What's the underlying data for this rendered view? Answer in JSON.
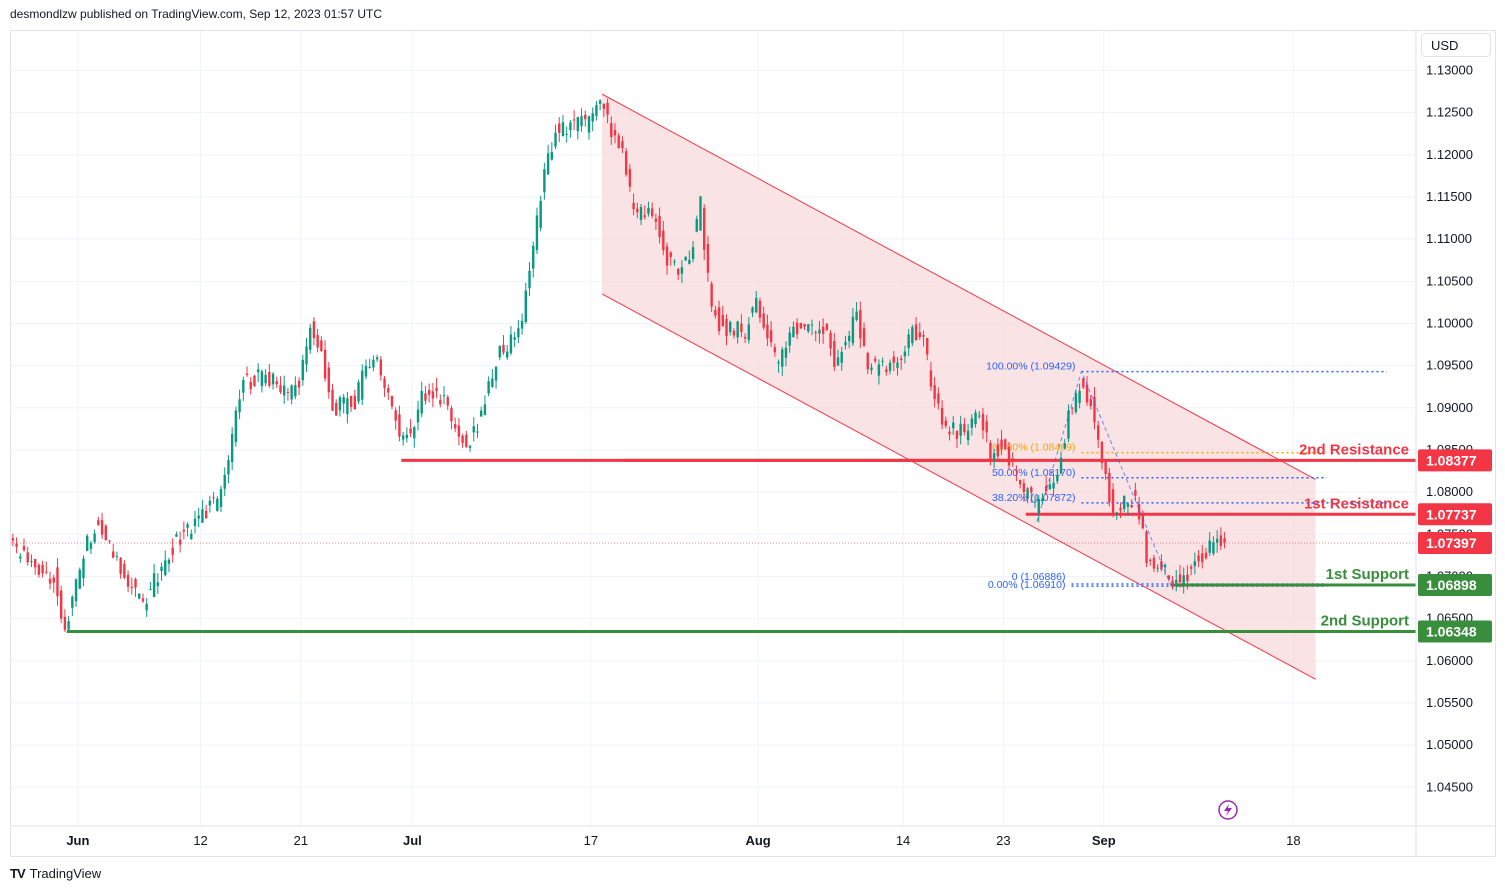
{
  "header": {
    "published_text": "desmondlzw published on TradingView.com, Sep 12, 2023 01:57 UTC"
  },
  "footer": {
    "logo_text": "TradingView",
    "logo_icon": "tradingview-logo-icon"
  },
  "currency": "USD",
  "colors": {
    "up": "#089981",
    "down": "#f23645",
    "resistance": "#f23645",
    "support": "#388e3c",
    "channel_fill": "#f8d7da",
    "channel_line": "#f23645",
    "fib_blue": "#2962ff",
    "fib_orange": "#f7a600",
    "grid": "#f0f3fa"
  },
  "chart_data": {
    "type": "candlestick",
    "pair_axis_currency": "USD",
    "ylim": [
      1.041,
      1.1335
    ],
    "y_ticks": [
      1.13,
      1.125,
      1.12,
      1.115,
      1.11,
      1.105,
      1.1,
      1.095,
      1.09,
      1.085,
      1.08,
      1.075,
      1.07,
      1.065,
      1.06,
      1.055,
      1.05,
      1.045
    ],
    "x_labels": [
      {
        "label": "Jun",
        "date": "2023-06-01",
        "bold": true
      },
      {
        "label": "12",
        "date": "2023-06-12",
        "bold": false
      },
      {
        "label": "21",
        "date": "2023-06-21",
        "bold": false
      },
      {
        "label": "Jul",
        "date": "2023-07-01",
        "bold": true
      },
      {
        "label": "17",
        "date": "2023-07-17",
        "bold": false
      },
      {
        "label": "Aug",
        "date": "2023-08-01",
        "bold": true
      },
      {
        "label": "14",
        "date": "2023-08-14",
        "bold": false
      },
      {
        "label": "23",
        "date": "2023-08-23",
        "bold": false
      },
      {
        "label": "Sep",
        "date": "2023-09-01",
        "bold": true
      },
      {
        "label": "18",
        "date": "2023-09-18",
        "bold": false
      }
    ],
    "x_range": [
      "2023-05-26",
      "2023-09-29"
    ],
    "price_path": [
      [
        "2023-05-26",
        1.0735
      ],
      [
        "2023-05-28",
        1.0715
      ],
      [
        "2023-05-30",
        1.07
      ],
      [
        "2023-05-31",
        1.0635
      ],
      [
        "2023-06-01",
        1.069
      ],
      [
        "2023-06-02",
        1.074
      ],
      [
        "2023-06-03",
        1.077
      ],
      [
        "2023-06-05",
        1.071
      ],
      [
        "2023-06-06",
        1.069
      ],
      [
        "2023-06-07",
        1.0665
      ],
      [
        "2023-06-08",
        1.0695
      ],
      [
        "2023-06-09",
        1.072
      ],
      [
        "2023-06-10",
        1.0745
      ],
      [
        "2023-06-12",
        1.0765
      ],
      [
        "2023-06-13",
        1.0785
      ],
      [
        "2023-06-14",
        1.0795
      ],
      [
        "2023-06-15",
        1.087
      ],
      [
        "2023-06-16",
        1.093
      ],
      [
        "2023-06-18",
        1.094
      ],
      [
        "2023-06-19",
        1.0925
      ],
      [
        "2023-06-20",
        1.0915
      ],
      [
        "2023-06-21",
        1.093
      ],
      [
        "2023-06-22",
        1.0995
      ],
      [
        "2023-06-23",
        1.0965
      ],
      [
        "2023-06-24",
        1.09
      ],
      [
        "2023-06-26",
        1.0905
      ],
      [
        "2023-06-27",
        1.095
      ],
      [
        "2023-06-28",
        1.096
      ],
      [
        "2023-06-29",
        1.091
      ],
      [
        "2023-06-30",
        1.087
      ],
      [
        "2023-07-01",
        1.0865
      ],
      [
        "2023-07-02",
        1.091
      ],
      [
        "2023-07-03",
        1.0915
      ],
      [
        "2023-07-04",
        1.0905
      ],
      [
        "2023-07-05",
        1.0875
      ],
      [
        "2023-07-06",
        1.0855
      ],
      [
        "2023-07-07",
        1.088
      ],
      [
        "2023-07-09",
        1.0965
      ],
      [
        "2023-07-10",
        1.098
      ],
      [
        "2023-07-11",
        1.101
      ],
      [
        "2023-07-12",
        1.109
      ],
      [
        "2023-07-13",
        1.118
      ],
      [
        "2023-07-14",
        1.123
      ],
      [
        "2023-07-16",
        1.124
      ],
      [
        "2023-07-17",
        1.1235
      ],
      [
        "2023-07-18",
        1.1265
      ],
      [
        "2023-07-19",
        1.1225
      ],
      [
        "2023-07-20",
        1.12
      ],
      [
        "2023-07-21",
        1.113
      ],
      [
        "2023-07-23",
        1.1125
      ],
      [
        "2023-07-24",
        1.1075
      ],
      [
        "2023-07-25",
        1.106
      ],
      [
        "2023-07-26",
        1.108
      ],
      [
        "2023-07-27",
        1.114
      ],
      [
        "2023-07-28",
        1.1015
      ],
      [
        "2023-07-29",
        1.0995
      ],
      [
        "2023-07-31",
        1.099
      ],
      [
        "2023-08-01",
        1.103
      ],
      [
        "2023-08-02",
        1.0985
      ],
      [
        "2023-08-03",
        1.0945
      ],
      [
        "2023-08-04",
        1.099
      ],
      [
        "2023-08-06",
        1.1
      ],
      [
        "2023-08-07",
        1.0995
      ],
      [
        "2023-08-08",
        1.0955
      ],
      [
        "2023-08-09",
        1.0975
      ],
      [
        "2023-08-10",
        1.101
      ],
      [
        "2023-08-11",
        1.095
      ],
      [
        "2023-08-12",
        1.0945
      ],
      [
        "2023-08-14",
        1.096
      ],
      [
        "2023-08-15",
        1.099
      ],
      [
        "2023-08-16",
        1.0975
      ],
      [
        "2023-08-17",
        1.091
      ],
      [
        "2023-08-18",
        1.0875
      ],
      [
        "2023-08-20",
        1.087
      ],
      [
        "2023-08-21",
        1.0895
      ],
      [
        "2023-08-22",
        1.0845
      ],
      [
        "2023-08-23",
        1.0855
      ],
      [
        "2023-08-24",
        1.0835
      ],
      [
        "2023-08-25",
        1.08
      ],
      [
        "2023-08-26",
        1.0785
      ],
      [
        "2023-08-28",
        1.082
      ],
      [
        "2023-08-29",
        1.089
      ],
      [
        "2023-08-30",
        1.093
      ],
      [
        "2023-08-31",
        1.091
      ],
      [
        "2023-09-01",
        1.084
      ],
      [
        "2023-09-02",
        1.0775
      ],
      [
        "2023-09-04",
        1.0795
      ],
      [
        "2023-09-05",
        1.0725
      ],
      [
        "2023-09-06",
        1.0715
      ],
      [
        "2023-09-07",
        1.07
      ],
      [
        "2023-09-08",
        1.0695
      ],
      [
        "2023-09-09",
        1.071
      ],
      [
        "2023-09-11",
        1.074
      ],
      [
        "2023-09-12",
        1.0745
      ]
    ],
    "channel": {
      "upper_start": [
        "2023-07-18",
        1.1272
      ],
      "upper_end": [
        "2023-09-20",
        1.0815
      ],
      "lower_start": [
        "2023-07-18",
        1.1035
      ],
      "lower_end": [
        "2023-09-20",
        1.0578
      ]
    },
    "levels": [
      {
        "name": "2nd Resistance",
        "value": 1.08377,
        "label": "1.08377",
        "kind": "resistance",
        "start": "2023-07-20"
      },
      {
        "name": "1st Resistance",
        "value": 1.07737,
        "label": "1.07737",
        "kind": "resistance",
        "start": "2023-08-25"
      },
      {
        "name": "current",
        "value": 1.07397,
        "label": "1.07397",
        "kind": "current"
      },
      {
        "name": "1st Support",
        "value": 1.06898,
        "label": "1.06898",
        "kind": "support",
        "start": "2023-09-07"
      },
      {
        "name": "2nd Support",
        "value": 1.06348,
        "label": "1.06348",
        "kind": "support",
        "start": "2023-05-31"
      }
    ],
    "old_resistance_start": "2023-06-30",
    "fib_levels": [
      {
        "label": "100.00% (1.09429)",
        "value": 1.09429,
        "color_key": "fib_blue"
      },
      {
        "label": "61.80% (1.08469)",
        "value": 1.08469,
        "color_key": "fib_orange"
      },
      {
        "label": "50.00% (1.08170)",
        "value": 1.0817,
        "color_key": "fib_blue"
      },
      {
        "label": "38.20% (1.07872)",
        "value": 1.07872,
        "color_key": "fib_blue"
      },
      {
        "label": "0.00% (1.06910)",
        "value": 1.0691,
        "color_key": "fib_blue"
      },
      {
        "label": "0 (1.06886)",
        "value": 1.06886,
        "color_key": "fib_blue"
      }
    ],
    "fib_start": "2023-08-30",
    "fib_extend_end": "2023-09-21",
    "grid": true,
    "legend": "none"
  }
}
